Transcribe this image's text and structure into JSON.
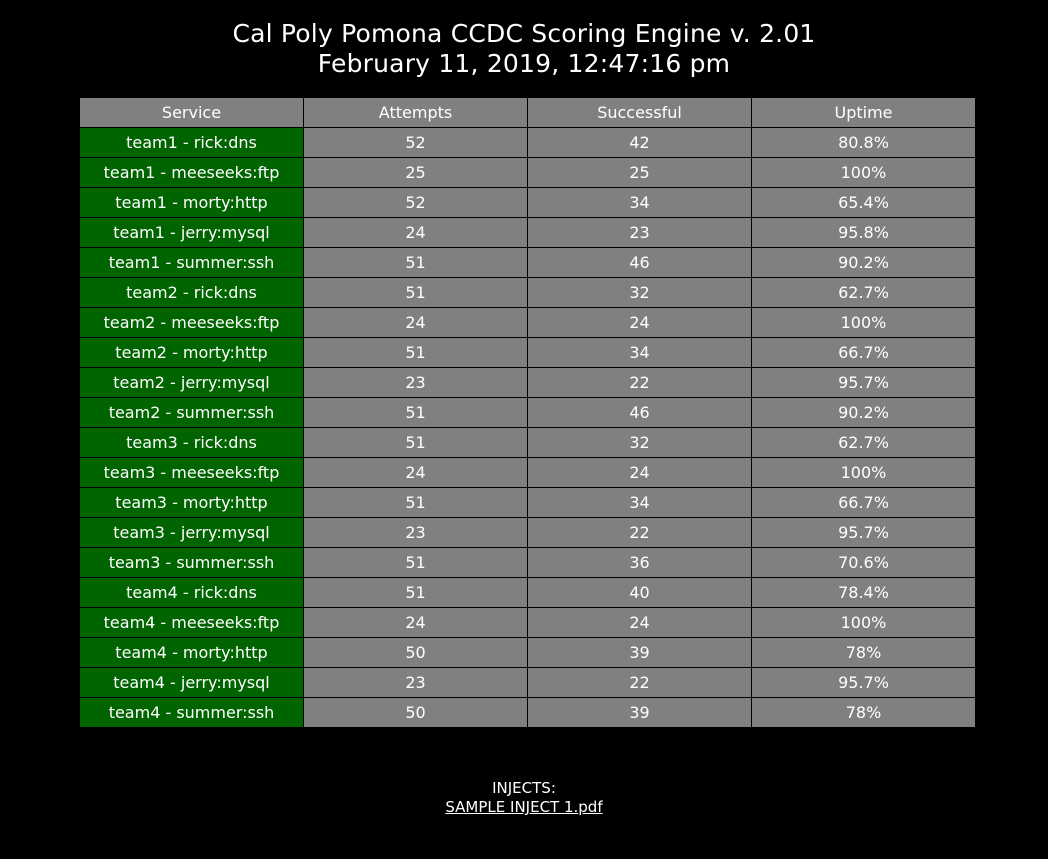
{
  "header": {
    "title": "Cal Poly Pomona CCDC Scoring Engine v. 2.01",
    "timestamp": "February 11, 2019, 12:47:16 pm"
  },
  "table": {
    "columns": [
      "Service",
      "Attempts",
      "Successful",
      "Uptime"
    ],
    "rows": [
      [
        "team1 - rick:dns",
        "52",
        "42",
        "80.8%"
      ],
      [
        "team1 - meeseeks:ftp",
        "25",
        "25",
        "100%"
      ],
      [
        "team1 - morty:http",
        "52",
        "34",
        "65.4%"
      ],
      [
        "team1 - jerry:mysql",
        "24",
        "23",
        "95.8%"
      ],
      [
        "team1 - summer:ssh",
        "51",
        "46",
        "90.2%"
      ],
      [
        "team2 - rick:dns",
        "51",
        "32",
        "62.7%"
      ],
      [
        "team2 - meeseeks:ftp",
        "24",
        "24",
        "100%"
      ],
      [
        "team2 - morty:http",
        "51",
        "34",
        "66.7%"
      ],
      [
        "team2 - jerry:mysql",
        "23",
        "22",
        "95.7%"
      ],
      [
        "team2 - summer:ssh",
        "51",
        "46",
        "90.2%"
      ],
      [
        "team3 - rick:dns",
        "51",
        "32",
        "62.7%"
      ],
      [
        "team3 - meeseeks:ftp",
        "24",
        "24",
        "100%"
      ],
      [
        "team3 - morty:http",
        "51",
        "34",
        "66.7%"
      ],
      [
        "team3 - jerry:mysql",
        "23",
        "22",
        "95.7%"
      ],
      [
        "team3 - summer:ssh",
        "51",
        "36",
        "70.6%"
      ],
      [
        "team4 - rick:dns",
        "51",
        "40",
        "78.4%"
      ],
      [
        "team4 - meeseeks:ftp",
        "24",
        "24",
        "100%"
      ],
      [
        "team4 - morty:http",
        "50",
        "39",
        "78%"
      ],
      [
        "team4 - jerry:mysql",
        "23",
        "22",
        "95.7%"
      ],
      [
        "team4 - summer:ssh",
        "50",
        "39",
        "78%"
      ]
    ]
  },
  "injects": {
    "label": "INJECTS:",
    "files": [
      "SAMPLE INJECT 1.pdf"
    ]
  },
  "colors": {
    "background": "#000000",
    "service_cell": "#006400",
    "data_cell": "#808080",
    "text": "#ffffff"
  }
}
